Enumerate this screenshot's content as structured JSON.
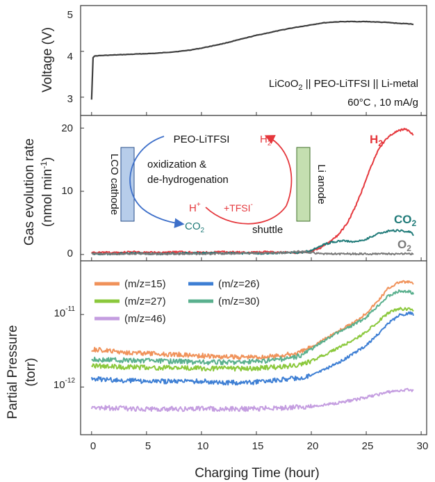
{
  "chart_data": [
    {
      "type": "line",
      "ylabel": "Voltage (V)",
      "ylim": [
        2.6,
        5.0
      ],
      "yticks": [
        "3",
        "4",
        "5"
      ],
      "xlim": [
        -1,
        30.5
      ],
      "annotation_line1_pre": "LiCoO",
      "annotation_line1_sub": "2",
      "annotation_line1_post": " || PEO-LiTFSI || Li-metal",
      "annotation_line2": "60°C , 10 mA/g",
      "series": [
        {
          "color": "#3d3d3d",
          "x": [
            0,
            0.01,
            0.05,
            0.3,
            1,
            2,
            3,
            4,
            5,
            6,
            7,
            8,
            9,
            10,
            11,
            12,
            13,
            14,
            15,
            16,
            17,
            18,
            19,
            20,
            21,
            22,
            23,
            24,
            25,
            26,
            27,
            28,
            29,
            29.3
          ],
          "y": [
            2.95,
            3.5,
            3.85,
            3.9,
            3.91,
            3.92,
            3.93,
            3.94,
            3.95,
            3.96,
            3.98,
            4.0,
            4.03,
            4.07,
            4.12,
            4.17,
            4.23,
            4.29,
            4.35,
            4.4,
            4.45,
            4.5,
            4.54,
            4.58,
            4.62,
            4.64,
            4.65,
            4.65,
            4.65,
            4.64,
            4.63,
            4.61,
            4.6,
            4.59
          ]
        }
      ]
    },
    {
      "type": "line",
      "ylabel_line1": "Gas evolution rate",
      "ylabel_line2_pre": "(nmol min",
      "ylabel_line2_sup": "-1",
      "ylabel_line2_post": ")",
      "ylim": [
        -1,
        22
      ],
      "yticks": [
        "0",
        "10",
        "20"
      ],
      "xlim": [
        -1,
        30.5
      ],
      "series": [
        {
          "name": "H2",
          "label_main": "H",
          "label_sub": "2",
          "color": "#e5373c",
          "x": [
            0,
            2,
            4,
            6,
            8,
            10,
            12,
            14,
            16,
            18,
            19,
            20,
            21,
            22,
            22.5,
            23,
            23.5,
            24,
            24.5,
            25,
            25.5,
            26,
            26.5,
            27,
            27.5,
            28,
            28.5,
            29,
            29.3
          ],
          "y": [
            0.3,
            0.3,
            0.4,
            0.3,
            0.4,
            0.3,
            0.4,
            0.3,
            0.4,
            0.3,
            0.3,
            0.5,
            1.2,
            2.4,
            3.2,
            4.3,
            5.7,
            7.5,
            9.6,
            12.0,
            14.2,
            16.2,
            17.6,
            18.6,
            19.2,
            19.6,
            19.9,
            19.4,
            18.9
          ]
        },
        {
          "name": "CO2",
          "label_main": "CO",
          "label_sub": "2",
          "color": "#1f7a78",
          "x": [
            0,
            2,
            4,
            6,
            8,
            10,
            12,
            14,
            16,
            18,
            19,
            20,
            21,
            22,
            23,
            24,
            25,
            26,
            27,
            28,
            29,
            29.3
          ],
          "y": [
            0.1,
            0.1,
            0.2,
            0.1,
            0.2,
            0.2,
            0.2,
            0.2,
            0.2,
            0.3,
            0.3,
            0.6,
            1.5,
            2.0,
            2.2,
            2.0,
            2.4,
            3.3,
            3.7,
            3.8,
            3.6,
            3.1
          ]
        },
        {
          "name": "O2",
          "label_main": "O",
          "label_sub": "2",
          "color": "#7a7a7a",
          "x": [
            0,
            5,
            10,
            15,
            18,
            19,
            20,
            21,
            25,
            29.3
          ],
          "y": [
            0.1,
            0.1,
            0.1,
            0.2,
            0.3,
            0.5,
            0.3,
            0.1,
            0.1,
            0.1
          ]
        }
      ],
      "schematic": {
        "left_electrode": "LCO cathode",
        "right_electrode": "Li anode",
        "top_label": "PEO-LiTFSI",
        "reaction_line1": "oxidization &",
        "reaction_line2": "de-hydrogenation",
        "h2_main": "H",
        "h2_sub": "2",
        "hplus_main": "H",
        "hplus_sup": "+",
        "tfsi_main": "+TFSI",
        "tfsi_sup": "-",
        "co2_main": "CO",
        "co2_sub": "2",
        "shuttle": "shuttle",
        "color_cathode": "#b7cdea",
        "color_anode": "#c4dfb0",
        "color_blue_arrow": "#3d6fc9",
        "color_red_arrow": "#e5373c",
        "color_teal": "#1f7a78"
      }
    },
    {
      "type": "line",
      "ylabel_line1": "Partial Pressure",
      "ylabel_line2": "(torr)",
      "yscale": "log",
      "ylim": [
        2.2e-13,
        5.5e-11
      ],
      "yticks": [
        {
          "value": 1e-11,
          "base": "10",
          "exp": "-11"
        },
        {
          "value": 1e-12,
          "base": "10",
          "exp": "-12"
        }
      ],
      "xlim": [
        -1,
        30.5
      ],
      "xlabel": "Charging Time (hour)",
      "xticks": [
        "0",
        "5",
        "10",
        "15",
        "20",
        "25",
        "30"
      ],
      "legend_placement": "top-left",
      "series": [
        {
          "name": "(m/z=15)",
          "color": "#f0925a",
          "x": [
            0,
            2,
            5,
            8,
            10,
            12,
            14,
            16,
            18,
            19,
            20,
            21,
            22,
            23,
            24,
            25,
            26,
            27,
            28,
            29,
            29.3
          ],
          "y": [
            3.3e-12,
            3.1e-12,
            2.9e-12,
            2.8e-12,
            2.7e-12,
            2.6e-12,
            2.6e-12,
            2.6e-12,
            2.8e-12,
            3e-12,
            3.6e-12,
            4.4e-12,
            5.4e-12,
            6.5e-12,
            8e-12,
            1.05e-11,
            1.5e-11,
            2.3e-11,
            2.8e-11,
            2.8e-11,
            2.6e-11
          ]
        },
        {
          "name": "(m/z=26)",
          "color": "#3e7fd4",
          "x": [
            0,
            2,
            5,
            8,
            10,
            12,
            14,
            16,
            18,
            19,
            20,
            21,
            22,
            23,
            24,
            25,
            26,
            27,
            28,
            29,
            29.3
          ],
          "y": [
            1.3e-12,
            1.25e-12,
            1.2e-12,
            1.2e-12,
            1.2e-12,
            1.15e-12,
            1.15e-12,
            1.2e-12,
            1.3e-12,
            1.35e-12,
            1.45e-12,
            1.7e-12,
            2e-12,
            2.4e-12,
            3e-12,
            3.8e-12,
            5.2e-12,
            7.5e-12,
            9.8e-12,
            1.05e-11,
            1e-11
          ]
        },
        {
          "name": "(m/z=27)",
          "color": "#8bc83c",
          "x": [
            0,
            2,
            5,
            8,
            10,
            12,
            14,
            16,
            18,
            19,
            20,
            21,
            22,
            23,
            24,
            25,
            26,
            27,
            28,
            29,
            29.3
          ],
          "y": [
            1.95e-12,
            1.9e-12,
            1.85e-12,
            1.85e-12,
            1.8e-12,
            1.8e-12,
            1.8e-12,
            1.85e-12,
            1.95e-12,
            2.05e-12,
            2.3e-12,
            2.7e-12,
            3.2e-12,
            3.8e-12,
            4.6e-12,
            5.8e-12,
            7.8e-12,
            1.05e-11,
            1.2e-11,
            1.18e-11,
            1.1e-11
          ]
        },
        {
          "name": "(m/z=30)",
          "color": "#5ab08e",
          "x": [
            0,
            2,
            5,
            8,
            10,
            12,
            14,
            16,
            18,
            19,
            20,
            21,
            22,
            23,
            24,
            25,
            26,
            27,
            28,
            29,
            29.3
          ],
          "y": [
            2.4e-12,
            2.35e-12,
            2.3e-12,
            2.25e-12,
            2.2e-12,
            2.2e-12,
            2.2e-12,
            2.3e-12,
            2.5e-12,
            2.7e-12,
            3.3e-12,
            4.2e-12,
            5.2e-12,
            6.2e-12,
            7.4e-12,
            9.2e-12,
            1.3e-11,
            1.8e-11,
            2.1e-11,
            2.05e-11,
            1.95e-11
          ]
        },
        {
          "name": "(m/z=46)",
          "color": "#c49de0",
          "x": [
            0,
            2,
            5,
            8,
            10,
            12,
            14,
            16,
            18,
            20,
            21,
            22,
            23,
            24,
            25,
            26,
            27,
            28,
            29,
            29.3
          ],
          "y": [
            5.3e-13,
            5.1e-13,
            5e-13,
            5e-13,
            5e-13,
            5e-13,
            5e-13,
            5.1e-13,
            5.2e-13,
            5.4e-13,
            5.6e-13,
            5.9e-13,
            6.3e-13,
            6.7e-13,
            7.2e-13,
            7.8e-13,
            8.5e-13,
            9e-13,
            9.3e-13,
            8.8e-13
          ]
        }
      ]
    }
  ]
}
